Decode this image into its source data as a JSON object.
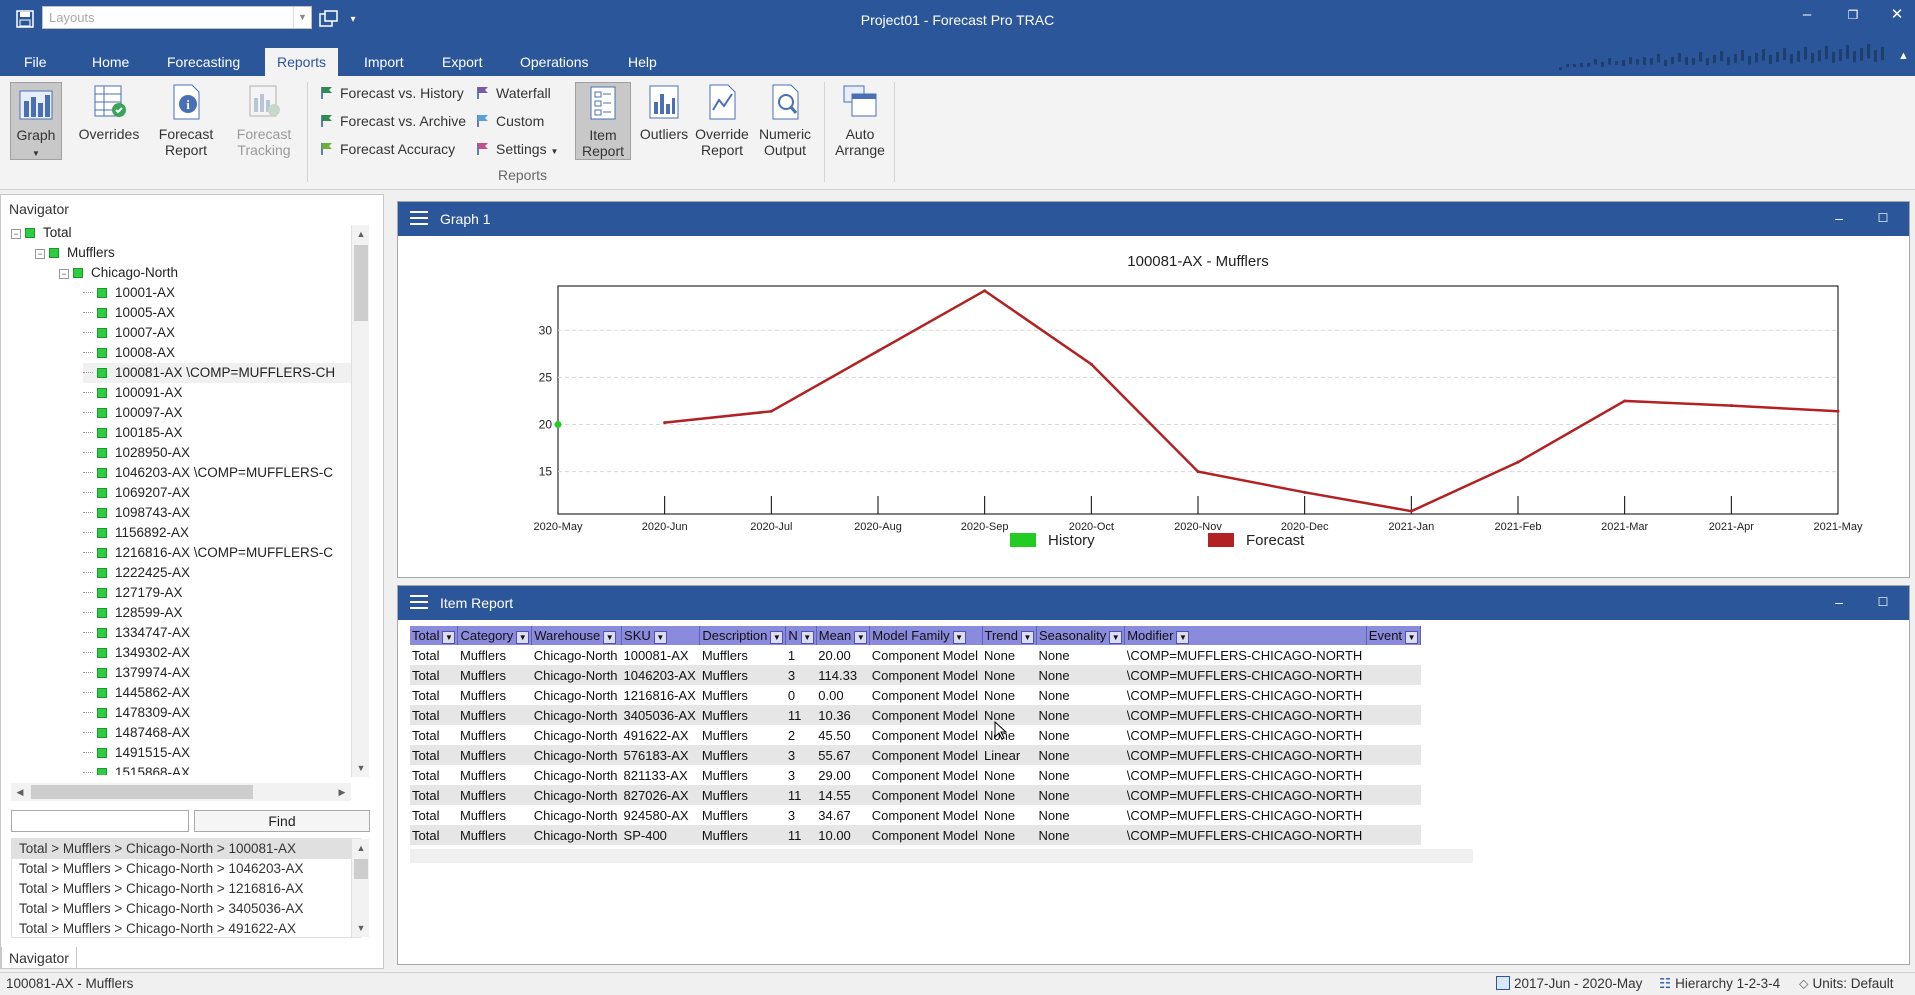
{
  "app": {
    "window_title": "Project01 - Forecast Pro TRAC",
    "layouts_placeholder": "Layouts"
  },
  "menu": {
    "tabs": [
      "File",
      "Home",
      "Forecasting",
      "Reports",
      "Import",
      "Export",
      "Operations",
      "Help"
    ],
    "active_tab": "Reports"
  },
  "ribbon": {
    "graph": "Graph",
    "overrides": "Overrides",
    "forecast_report": "Forecast Report",
    "forecast_tracking": "Forecast Tracking",
    "forecast_vs_history": "Forecast vs. History",
    "forecast_vs_archive": "Forecast vs. Archive",
    "forecast_accuracy": "Forecast Accuracy",
    "waterfall": "Waterfall",
    "custom": "Custom",
    "settings": "Settings",
    "item_report": "Item Report",
    "outliers": "Outliers",
    "override_report": "Override Report",
    "numeric_output": "Numeric Output",
    "auto_arrange": "Auto Arrange",
    "group_label": "Reports"
  },
  "navigator": {
    "title": "Navigator",
    "tree": [
      {
        "label": "Total",
        "level": 0,
        "expand": "−"
      },
      {
        "label": "Mufflers",
        "level": 1,
        "expand": "−"
      },
      {
        "label": "Chicago-North",
        "level": 2,
        "expand": "−"
      },
      {
        "label": "10001-AX",
        "level": 3
      },
      {
        "label": "10005-AX",
        "level": 3
      },
      {
        "label": "10007-AX",
        "level": 3
      },
      {
        "label": "10008-AX",
        "level": 3
      },
      {
        "label": "100081-AX \\COMP=MUFFLERS-CH",
        "level": 3,
        "selected": true
      },
      {
        "label": "100091-AX",
        "level": 3
      },
      {
        "label": "100097-AX",
        "level": 3
      },
      {
        "label": "100185-AX",
        "level": 3
      },
      {
        "label": "1028950-AX",
        "level": 3
      },
      {
        "label": "1046203-AX \\COMP=MUFFLERS-C",
        "level": 3
      },
      {
        "label": "1069207-AX",
        "level": 3
      },
      {
        "label": "1098743-AX",
        "level": 3
      },
      {
        "label": "1156892-AX",
        "level": 3
      },
      {
        "label": "1216816-AX \\COMP=MUFFLERS-C",
        "level": 3
      },
      {
        "label": "1222425-AX",
        "level": 3
      },
      {
        "label": "127179-AX",
        "level": 3
      },
      {
        "label": "128599-AX",
        "level": 3
      },
      {
        "label": "1334747-AX",
        "level": 3
      },
      {
        "label": "1349302-AX",
        "level": 3
      },
      {
        "label": "1379974-AX",
        "level": 3
      },
      {
        "label": "1445862-AX",
        "level": 3
      },
      {
        "label": "1478309-AX",
        "level": 3
      },
      {
        "label": "1487468-AX",
        "level": 3
      },
      {
        "label": "1491515-AX",
        "level": 3
      },
      {
        "label": "1515868-AX",
        "level": 3
      }
    ],
    "find_value": "",
    "find_button": "Find",
    "paths": [
      "Total > Mufflers > Chicago-North > 100081-AX",
      "Total > Mufflers > Chicago-North > 1046203-AX",
      "Total > Mufflers > Chicago-North > 1216816-AX",
      "Total > Mufflers > Chicago-North > 3405036-AX",
      "Total > Mufflers > Chicago-North > 491622-AX"
    ],
    "tab_label": "Navigator"
  },
  "graph_panel": {
    "title": "Graph 1"
  },
  "chart_data": {
    "type": "line",
    "title": "100081-AX - Mufflers",
    "x": [
      "2020-May",
      "2020-Jun",
      "2020-Jul",
      "2020-Aug",
      "2020-Sep",
      "2020-Oct",
      "2020-Nov",
      "2020-Dec",
      "2021-Jan",
      "2021-Feb",
      "2021-Mar",
      "2021-Apr",
      "2021-May"
    ],
    "series": [
      {
        "name": "History",
        "color": "#22cc22",
        "values": [
          20,
          null,
          null,
          null,
          null,
          null,
          null,
          null,
          null,
          null,
          null,
          null,
          null
        ]
      },
      {
        "name": "Forecast",
        "color": "#b22222",
        "values": [
          null,
          20.2,
          21.4,
          27.8,
          34.2,
          26.4,
          15.0,
          12.8,
          10.8,
          16.0,
          22.5,
          22.0,
          21.4
        ]
      }
    ],
    "yticks": [
      15,
      20,
      25,
      30
    ],
    "ylim": [
      10.5,
      34.7
    ],
    "grid": true,
    "legend": "bottom"
  },
  "item_report": {
    "title": "Item Report",
    "columns": [
      "Total",
      "Category",
      "Warehouse",
      "SKU",
      "Description",
      "N",
      "Mean",
      "Model Family",
      "Trend",
      "Seasonality",
      "Modifier",
      "Event"
    ],
    "rows": [
      [
        "Total",
        "Mufflers",
        "Chicago-North",
        "100081-AX",
        "Mufflers",
        "1",
        "20.00",
        "Component Model",
        "None",
        "None",
        "\\COMP=MUFFLERS-CHICAGO-NORTH",
        ""
      ],
      [
        "Total",
        "Mufflers",
        "Chicago-North",
        "1046203-AX",
        "Mufflers",
        "3",
        "114.33",
        "Component Model",
        "None",
        "None",
        "\\COMP=MUFFLERS-CHICAGO-NORTH",
        ""
      ],
      [
        "Total",
        "Mufflers",
        "Chicago-North",
        "1216816-AX",
        "Mufflers",
        "0",
        "0.00",
        "Component Model",
        "None",
        "None",
        "\\COMP=MUFFLERS-CHICAGO-NORTH",
        ""
      ],
      [
        "Total",
        "Mufflers",
        "Chicago-North",
        "3405036-AX",
        "Mufflers",
        "11",
        "10.36",
        "Component Model",
        "None",
        "None",
        "\\COMP=MUFFLERS-CHICAGO-NORTH",
        ""
      ],
      [
        "Total",
        "Mufflers",
        "Chicago-North",
        "491622-AX",
        "Mufflers",
        "2",
        "45.50",
        "Component Model",
        "None",
        "None",
        "\\COMP=MUFFLERS-CHICAGO-NORTH",
        ""
      ],
      [
        "Total",
        "Mufflers",
        "Chicago-North",
        "576183-AX",
        "Mufflers",
        "3",
        "55.67",
        "Component Model",
        "Linear",
        "None",
        "\\COMP=MUFFLERS-CHICAGO-NORTH",
        ""
      ],
      [
        "Total",
        "Mufflers",
        "Chicago-North",
        "821133-AX",
        "Mufflers",
        "3",
        "29.00",
        "Component Model",
        "None",
        "None",
        "\\COMP=MUFFLERS-CHICAGO-NORTH",
        ""
      ],
      [
        "Total",
        "Mufflers",
        "Chicago-North",
        "827026-AX",
        "Mufflers",
        "11",
        "14.55",
        "Component Model",
        "None",
        "None",
        "\\COMP=MUFFLERS-CHICAGO-NORTH",
        ""
      ],
      [
        "Total",
        "Mufflers",
        "Chicago-North",
        "924580-AX",
        "Mufflers",
        "3",
        "34.67",
        "Component Model",
        "None",
        "None",
        "\\COMP=MUFFLERS-CHICAGO-NORTH",
        ""
      ],
      [
        "Total",
        "Mufflers",
        "Chicago-North",
        "SP-400",
        "Mufflers",
        "11",
        "10.00",
        "Component Model",
        "None",
        "None",
        "\\COMP=MUFFLERS-CHICAGO-NORTH",
        ""
      ]
    ]
  },
  "status": {
    "left": "100081-AX - Mufflers",
    "period": "2017-Jun - 2020-May",
    "hierarchy": "Hierarchy 1-2-3-4",
    "units": "Units: Default"
  }
}
